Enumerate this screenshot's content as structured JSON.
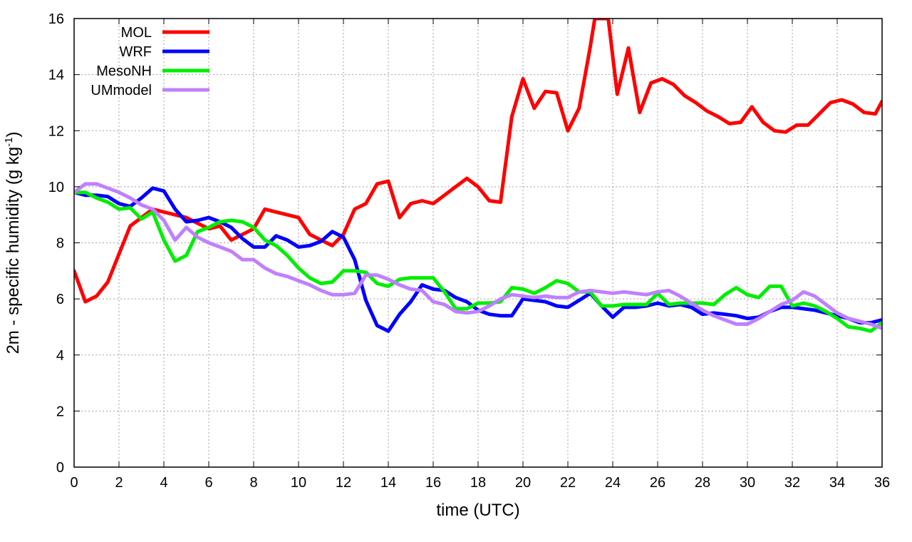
{
  "chart_data": {
    "type": "line",
    "xlabel": "time (UTC)",
    "ylabel_main": "2m - specific humidity (g kg",
    "ylabel_sup": "-1",
    "ylabel_tail": ")",
    "xlim": [
      0,
      36
    ],
    "ylim": [
      0,
      16
    ],
    "x_ticks": [
      0,
      2,
      4,
      6,
      8,
      10,
      12,
      14,
      16,
      18,
      20,
      22,
      24,
      26,
      28,
      30,
      32,
      34,
      36
    ],
    "y_ticks": [
      0,
      2,
      4,
      6,
      8,
      10,
      12,
      14,
      16
    ],
    "grid": true,
    "legend_position": "top-left",
    "series": [
      {
        "name": "MOL",
        "color": "#ff0000",
        "x": [
          0,
          0.5,
          1,
          1.5,
          2,
          2.5,
          3,
          3.5,
          4,
          4.5,
          5,
          5.5,
          6,
          6.5,
          7,
          7.5,
          8,
          8.5,
          9,
          9.5,
          10,
          10.5,
          11,
          11.5,
          12,
          12.5,
          13,
          13.5,
          14,
          14.5,
          15,
          15.5,
          16,
          16.5,
          17,
          17.5,
          18,
          18.5,
          19,
          19.5,
          20,
          20.5,
          21,
          21.5,
          22,
          22.5,
          23,
          23.2,
          23.8,
          24.2,
          24.7,
          25.2,
          25.7,
          26.2,
          26.7,
          27.2,
          27.7,
          28.2,
          28.7,
          29.2,
          29.7,
          30.2,
          30.7,
          31.2,
          31.7,
          32.2,
          32.7,
          33.2,
          33.7,
          34.2,
          34.7,
          35.2,
          35.7,
          36
        ],
        "y": [
          7.0,
          5.9,
          6.1,
          6.6,
          7.6,
          8.6,
          8.9,
          9.2,
          9.1,
          9.0,
          8.9,
          8.7,
          8.5,
          8.6,
          8.1,
          8.3,
          8.5,
          9.2,
          9.1,
          9.0,
          8.9,
          8.3,
          8.1,
          7.9,
          8.3,
          9.2,
          9.4,
          10.1,
          10.2,
          8.9,
          9.4,
          9.5,
          9.4,
          9.7,
          10.0,
          10.3,
          10.0,
          9.5,
          9.45,
          12.5,
          13.85,
          12.8,
          13.4,
          13.35,
          12.0,
          12.8,
          15.0,
          16.0,
          16.0,
          13.3,
          14.95,
          12.65,
          13.7,
          13.85,
          13.65,
          13.25,
          13.0,
          12.7,
          12.5,
          12.25,
          12.3,
          12.85,
          12.3,
          12.0,
          11.95,
          12.2,
          12.2,
          12.6,
          13.0,
          13.1,
          12.95,
          12.65,
          12.6,
          13.05
        ]
      },
      {
        "name": "WRF",
        "color": "#0000ff",
        "x": [
          0,
          0.5,
          1,
          1.5,
          2,
          2.5,
          3,
          3.5,
          4,
          4.5,
          5,
          5.5,
          6,
          6.5,
          7,
          7.5,
          8,
          8.5,
          9,
          9.5,
          10,
          10.5,
          11,
          11.5,
          12,
          12.5,
          13,
          13.5,
          14,
          14.5,
          15,
          15.5,
          16,
          16.5,
          17,
          17.5,
          18,
          18.5,
          19,
          19.5,
          20,
          20.5,
          21,
          21.5,
          22,
          22.5,
          23,
          23.5,
          24,
          24.5,
          25,
          25.5,
          26,
          26.5,
          27,
          27.5,
          28,
          28.5,
          29,
          29.5,
          30,
          30.5,
          31,
          31.5,
          32,
          32.5,
          33,
          33.5,
          34,
          34.5,
          35,
          35.5,
          36
        ],
        "y": [
          9.8,
          9.7,
          9.7,
          9.65,
          9.4,
          9.3,
          9.6,
          9.95,
          9.85,
          9.2,
          8.75,
          8.8,
          8.9,
          8.75,
          8.55,
          8.15,
          7.85,
          7.85,
          8.25,
          8.1,
          7.85,
          7.9,
          8.05,
          8.4,
          8.2,
          7.4,
          5.95,
          5.05,
          4.85,
          5.45,
          5.9,
          6.5,
          6.35,
          6.3,
          6.05,
          5.9,
          5.6,
          5.45,
          5.4,
          5.4,
          6.0,
          5.95,
          5.9,
          5.75,
          5.7,
          5.95,
          6.2,
          5.75,
          5.35,
          5.7,
          5.7,
          5.75,
          5.85,
          5.75,
          5.8,
          5.7,
          5.45,
          5.5,
          5.45,
          5.4,
          5.3,
          5.35,
          5.55,
          5.7,
          5.7,
          5.65,
          5.6,
          5.5,
          5.4,
          5.3,
          5.15,
          5.15,
          5.25
        ]
      },
      {
        "name": "MesoNH",
        "color": "#00ee00",
        "x": [
          0,
          0.5,
          1,
          1.5,
          2,
          2.5,
          3,
          3.5,
          4,
          4.5,
          5,
          5.5,
          6,
          6.5,
          7,
          7.5,
          8,
          8.5,
          9,
          9.5,
          10,
          10.5,
          11,
          11.5,
          12,
          12.5,
          13,
          13.5,
          14,
          14.5,
          15,
          15.5,
          16,
          16.5,
          17,
          17.5,
          18,
          18.5,
          19,
          19.5,
          20,
          20.5,
          21,
          21.5,
          22,
          22.5,
          23,
          23.5,
          24,
          24.5,
          25,
          25.5,
          26,
          26.5,
          27,
          27.5,
          28,
          28.5,
          29,
          29.5,
          30,
          30.5,
          31,
          31.5,
          32,
          32.5,
          33,
          33.5,
          34,
          34.5,
          35,
          35.5,
          36
        ],
        "y": [
          9.8,
          9.8,
          9.6,
          9.45,
          9.2,
          9.25,
          8.85,
          9.1,
          8.1,
          7.35,
          7.55,
          8.4,
          8.55,
          8.75,
          8.8,
          8.75,
          8.55,
          8.1,
          7.9,
          7.55,
          7.1,
          6.75,
          6.55,
          6.6,
          7.0,
          7.0,
          6.95,
          6.55,
          6.45,
          6.7,
          6.75,
          6.75,
          6.75,
          6.25,
          5.65,
          5.65,
          5.85,
          5.85,
          5.9,
          6.4,
          6.35,
          6.2,
          6.4,
          6.65,
          6.55,
          6.25,
          6.25,
          5.75,
          5.75,
          5.8,
          5.8,
          5.8,
          6.2,
          5.8,
          5.85,
          5.85,
          5.85,
          5.8,
          6.15,
          6.4,
          6.15,
          6.05,
          6.45,
          6.45,
          5.75,
          5.85,
          5.75,
          5.55,
          5.3,
          5.0,
          4.95,
          4.85,
          5.15
        ]
      },
      {
        "name": "UMmodel",
        "color": "#bf80ff",
        "x": [
          0,
          0.5,
          1,
          1.5,
          2,
          2.5,
          3,
          3.5,
          4,
          4.5,
          5,
          5.5,
          6,
          6.5,
          7,
          7.5,
          8,
          8.5,
          9,
          9.5,
          10,
          10.5,
          11,
          11.5,
          12,
          12.5,
          13,
          13.5,
          14,
          14.5,
          15,
          15.5,
          16,
          16.5,
          17,
          17.5,
          18,
          18.5,
          19,
          19.5,
          20,
          20.5,
          21,
          21.5,
          22,
          22.5,
          23,
          23.5,
          24,
          24.5,
          25,
          25.5,
          26,
          26.5,
          27,
          27.5,
          28,
          28.5,
          29,
          29.5,
          30,
          30.5,
          31,
          31.5,
          32,
          32.5,
          33,
          33.5,
          34,
          34.5,
          35,
          35.5,
          36
        ],
        "y": [
          9.8,
          10.1,
          10.1,
          9.95,
          9.8,
          9.6,
          9.35,
          9.2,
          8.8,
          8.1,
          8.55,
          8.2,
          8.0,
          7.85,
          7.7,
          7.4,
          7.4,
          7.1,
          6.9,
          6.8,
          6.65,
          6.5,
          6.3,
          6.15,
          6.15,
          6.2,
          6.85,
          6.85,
          6.7,
          6.5,
          6.35,
          6.3,
          5.9,
          5.8,
          5.55,
          5.5,
          5.55,
          5.75,
          6.0,
          6.15,
          6.1,
          6.05,
          6.1,
          6.05,
          6.05,
          6.25,
          6.3,
          6.25,
          6.2,
          6.25,
          6.2,
          6.15,
          6.25,
          6.3,
          6.1,
          5.85,
          5.6,
          5.4,
          5.25,
          5.1,
          5.1,
          5.3,
          5.55,
          5.8,
          5.95,
          6.25,
          6.1,
          5.8,
          5.5,
          5.3,
          5.2,
          5.1,
          4.95
        ]
      }
    ]
  }
}
